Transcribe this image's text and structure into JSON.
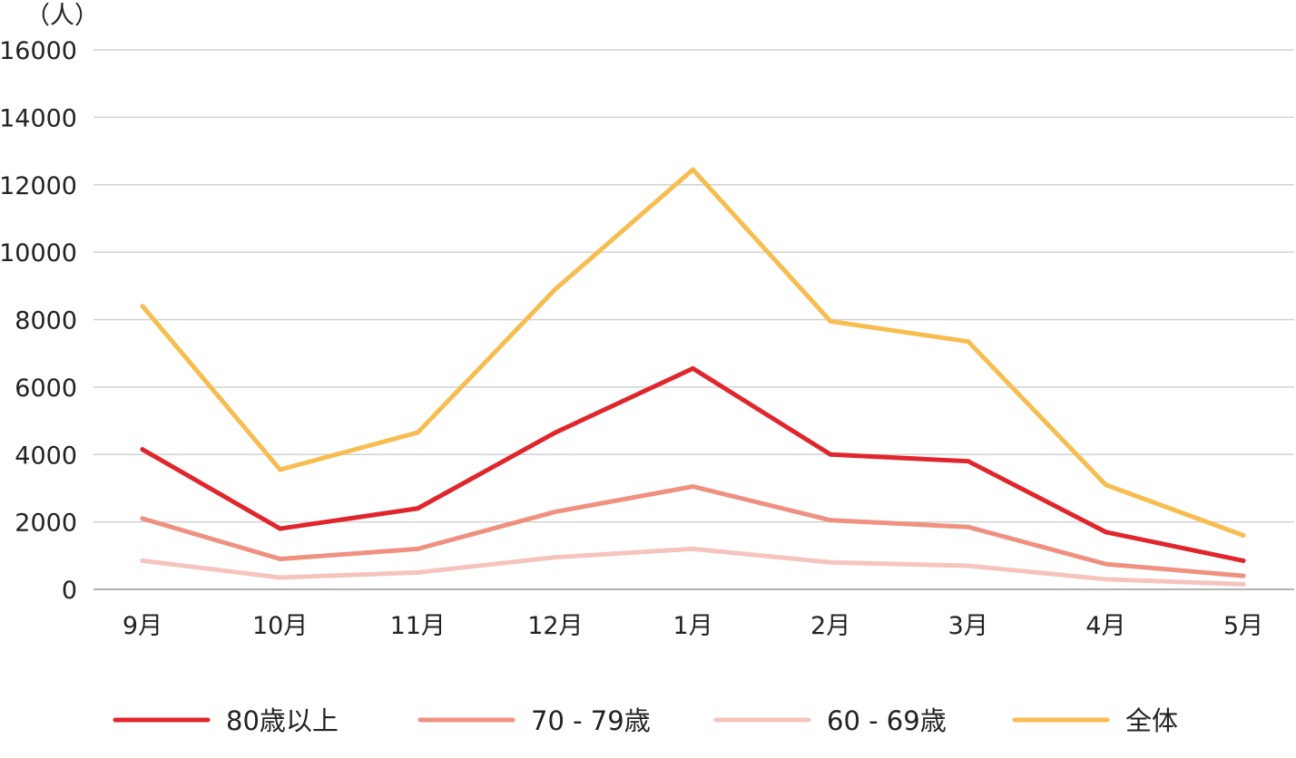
{
  "chart_data": {
    "type": "line",
    "unit_label": "（人）",
    "categories": [
      "9月",
      "10月",
      "11月",
      "12月",
      "1月",
      "2月",
      "3月",
      "4月",
      "5月"
    ],
    "ylim": [
      0,
      16000
    ],
    "yticks": [
      "0",
      "2000",
      "4000",
      "6000",
      "8000",
      "10000",
      "12000",
      "14000",
      "16000"
    ],
    "ytick_values": [
      0,
      2000,
      4000,
      6000,
      8000,
      10000,
      12000,
      14000,
      16000
    ],
    "grid": true,
    "legend_position": "bottom",
    "series": [
      {
        "name": "80歳以上",
        "color": "#e0262c",
        "values": [
          4150,
          1800,
          2400,
          4650,
          6550,
          4000,
          3800,
          1700,
          850
        ]
      },
      {
        "name": "70 - 79歳",
        "color": "#f09080",
        "values": [
          2100,
          900,
          1200,
          2300,
          3050,
          2050,
          1850,
          750,
          400
        ]
      },
      {
        "name": "60 - 69歳",
        "color": "#f6c4be",
        "values": [
          850,
          350,
          500,
          950,
          1200,
          800,
          700,
          300,
          150
        ]
      },
      {
        "name": "全体",
        "color": "#f7bd50",
        "values": [
          8400,
          3550,
          4650,
          8900,
          12450,
          7950,
          7350,
          3100,
          1600
        ]
      }
    ]
  }
}
